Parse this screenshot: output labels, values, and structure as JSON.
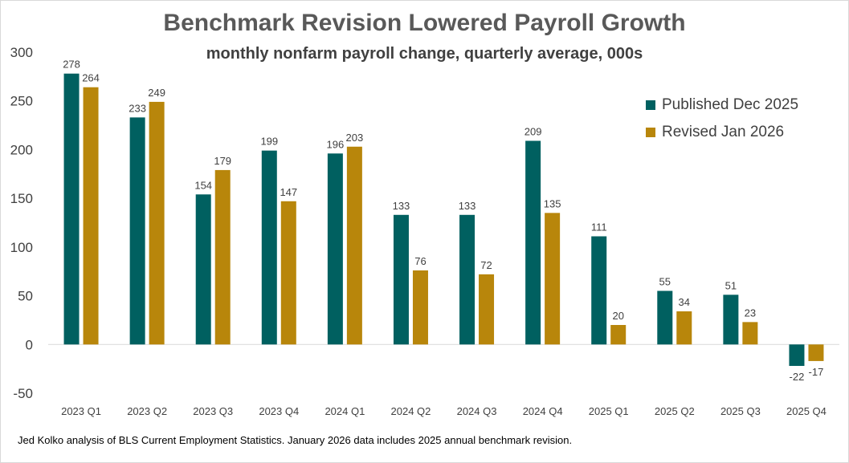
{
  "chart_data": {
    "type": "bar",
    "title": "Benchmark Revision Lowered Payroll Growth",
    "subtitle": "monthly nonfarm payroll change, quarterly average, 000s",
    "categories": [
      "2023 Q1",
      "2023 Q2",
      "2023 Q3",
      "2023 Q4",
      "2024 Q1",
      "2024 Q2",
      "2024 Q3",
      "2024 Q4",
      "2025 Q1",
      "2025 Q2",
      "2025 Q3",
      "2025 Q4"
    ],
    "series": [
      {
        "name": "Published Dec 2025",
        "color": "#006060",
        "values": [
          278,
          233,
          154,
          199,
          196,
          133,
          133,
          209,
          111,
          55,
          51,
          -22
        ]
      },
      {
        "name": "Revised Jan 2026",
        "color": "#b8860b",
        "values": [
          264,
          249,
          179,
          147,
          203,
          76,
          72,
          135,
          20,
          34,
          23,
          -17
        ]
      }
    ],
    "yticks": [
      300,
      250,
      200,
      150,
      100,
      50,
      0,
      -50
    ],
    "ylim": [
      -50,
      300
    ],
    "xlabel": "",
    "ylabel": "",
    "legend_position": "top-right",
    "grid": false
  },
  "footnote": "Jed Kolko analysis of BLS Current Employment Statistics.  January 2026 data includes 2025 annual benchmark revision."
}
